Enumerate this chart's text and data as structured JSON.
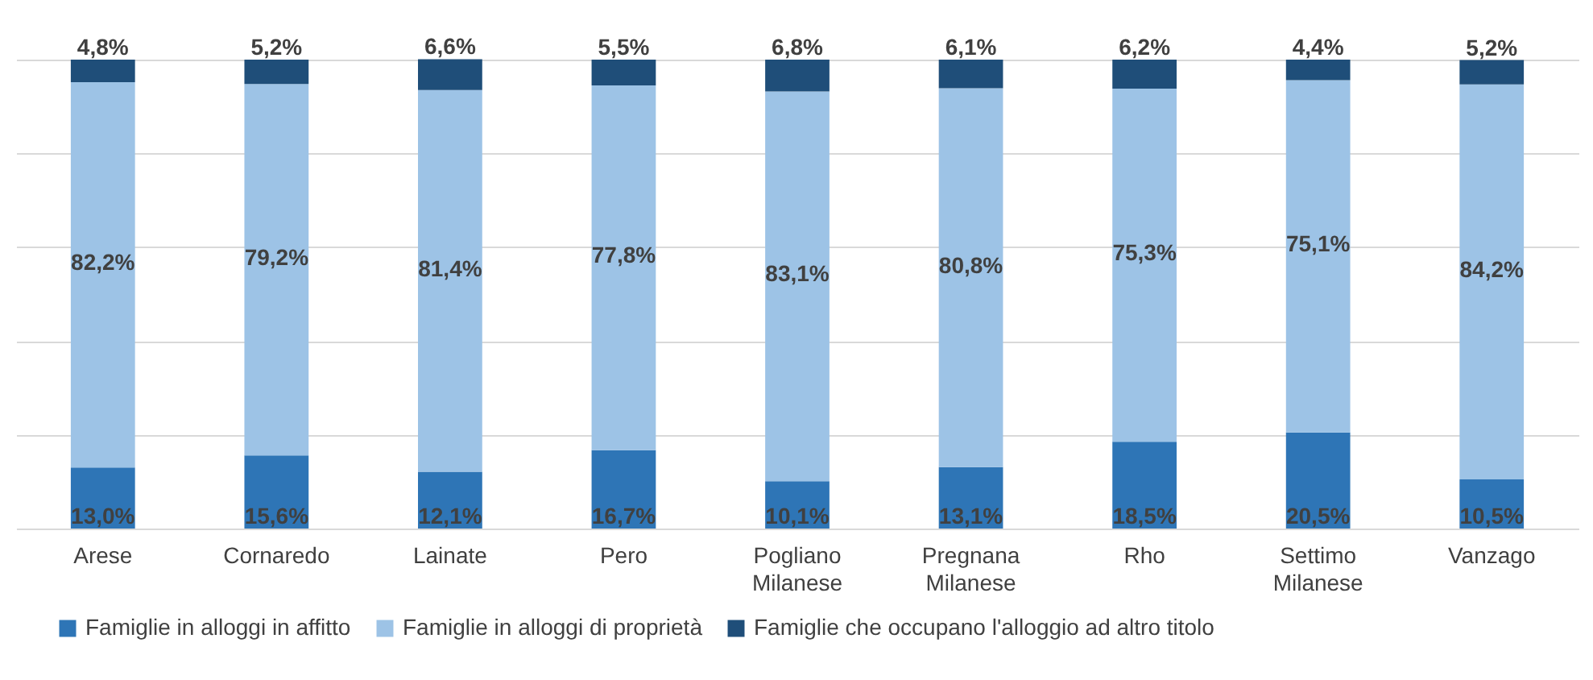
{
  "chart_data": {
    "type": "bar",
    "stacked": true,
    "categories": [
      "Arese",
      "Cornaredo",
      "Lainate",
      "Pero",
      "Pogliano Milanese",
      "Pregnana Milanese",
      "Rho",
      "Settimo Milanese",
      "Vanzago"
    ],
    "series": [
      {
        "name": "Famiglie in alloggi in affitto",
        "color": "#2e75b6",
        "values": [
          13.0,
          15.6,
          12.1,
          16.7,
          10.1,
          13.1,
          18.5,
          20.5,
          10.5
        ],
        "value_labels": [
          "13,0%",
          "15,6%",
          "12,1%",
          "16,7%",
          "10,1%",
          "13,1%",
          "18,5%",
          "20,5%",
          "10,5%"
        ]
      },
      {
        "name": "Famiglie in alloggi di proprietà",
        "color": "#9dc3e6",
        "values": [
          82.2,
          79.2,
          81.4,
          77.8,
          83.1,
          80.8,
          75.3,
          75.1,
          84.2
        ],
        "value_labels": [
          "82,2%",
          "79,2%",
          "81,4%",
          "77,8%",
          "83,1%",
          "80,8%",
          "75,3%",
          "75,1%",
          "84,2%"
        ]
      },
      {
        "name": "Famiglie che occupano l'alloggio ad altro titolo",
        "color": "#1f4e79",
        "values": [
          4.8,
          5.2,
          6.6,
          5.5,
          6.8,
          6.1,
          6.2,
          4.4,
          5.2
        ],
        "value_labels": [
          "4,8%",
          "5,2%",
          "6,6%",
          "5,5%",
          "6,8%",
          "6,1%",
          "6,2%",
          "4,4%",
          "5,2%"
        ]
      }
    ],
    "ylim": [
      0,
      100
    ],
    "yticks": [
      {
        "value": 0,
        "label": null
      },
      {
        "value": 20,
        "label": null
      },
      {
        "value": 40,
        "label": null
      },
      {
        "value": 60,
        "label": null
      },
      {
        "value": 80,
        "label": null
      },
      {
        "value": 100,
        "label": null
      }
    ],
    "tick_labels": "x",
    "grid": "y",
    "legend": "bottom"
  }
}
